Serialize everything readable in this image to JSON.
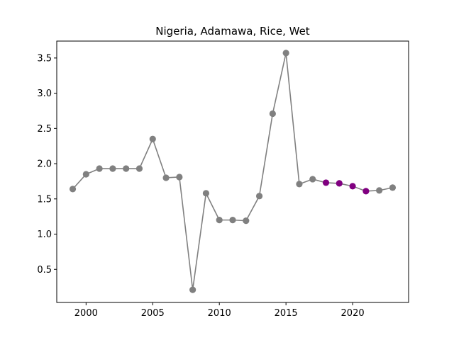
{
  "chart_data": {
    "type": "line",
    "title": "Nigeria, Adamawa, Rice, Wet",
    "xlabel": "",
    "ylabel": "",
    "xlim": [
      1997.8,
      2024.2
    ],
    "ylim": [
      0.03,
      3.74
    ],
    "x_ticks": [
      2000,
      2005,
      2010,
      2015,
      2020
    ],
    "x_tick_labels": [
      "2000",
      "2005",
      "2010",
      "2015",
      "2020"
    ],
    "y_ticks": [
      0.5,
      1.0,
      1.5,
      2.0,
      2.5,
      3.0,
      3.5
    ],
    "y_tick_labels": [
      "0.5",
      "1.0",
      "1.5",
      "2.0",
      "2.5",
      "3.0",
      "3.5"
    ],
    "grid": false,
    "line_color": "#808080",
    "points": [
      {
        "x": 1999,
        "y": 1.64,
        "color": "#808080"
      },
      {
        "x": 2000,
        "y": 1.85,
        "color": "#808080"
      },
      {
        "x": 2001,
        "y": 1.93,
        "color": "#808080"
      },
      {
        "x": 2002,
        "y": 1.93,
        "color": "#808080"
      },
      {
        "x": 2003,
        "y": 1.93,
        "color": "#808080"
      },
      {
        "x": 2004,
        "y": 1.93,
        "color": "#808080"
      },
      {
        "x": 2005,
        "y": 2.35,
        "color": "#808080"
      },
      {
        "x": 2006,
        "y": 1.8,
        "color": "#808080"
      },
      {
        "x": 2007,
        "y": 1.81,
        "color": "#808080"
      },
      {
        "x": 2008,
        "y": 0.21,
        "color": "#808080"
      },
      {
        "x": 2009,
        "y": 1.58,
        "color": "#808080"
      },
      {
        "x": 2010,
        "y": 1.2,
        "color": "#808080"
      },
      {
        "x": 2011,
        "y": 1.2,
        "color": "#808080"
      },
      {
        "x": 2012,
        "y": 1.19,
        "color": "#808080"
      },
      {
        "x": 2013,
        "y": 1.54,
        "color": "#808080"
      },
      {
        "x": 2014,
        "y": 2.71,
        "color": "#808080"
      },
      {
        "x": 2015,
        "y": 3.57,
        "color": "#808080"
      },
      {
        "x": 2016,
        "y": 1.71,
        "color": "#808080"
      },
      {
        "x": 2017,
        "y": 1.78,
        "color": "#808080"
      },
      {
        "x": 2018,
        "y": 1.73,
        "color": "#800080"
      },
      {
        "x": 2019,
        "y": 1.72,
        "color": "#800080"
      },
      {
        "x": 2020,
        "y": 1.68,
        "color": "#800080"
      },
      {
        "x": 2021,
        "y": 1.61,
        "color": "#800080"
      },
      {
        "x": 2022,
        "y": 1.62,
        "color": "#808080"
      },
      {
        "x": 2023,
        "y": 1.66,
        "color": "#808080"
      }
    ]
  }
}
